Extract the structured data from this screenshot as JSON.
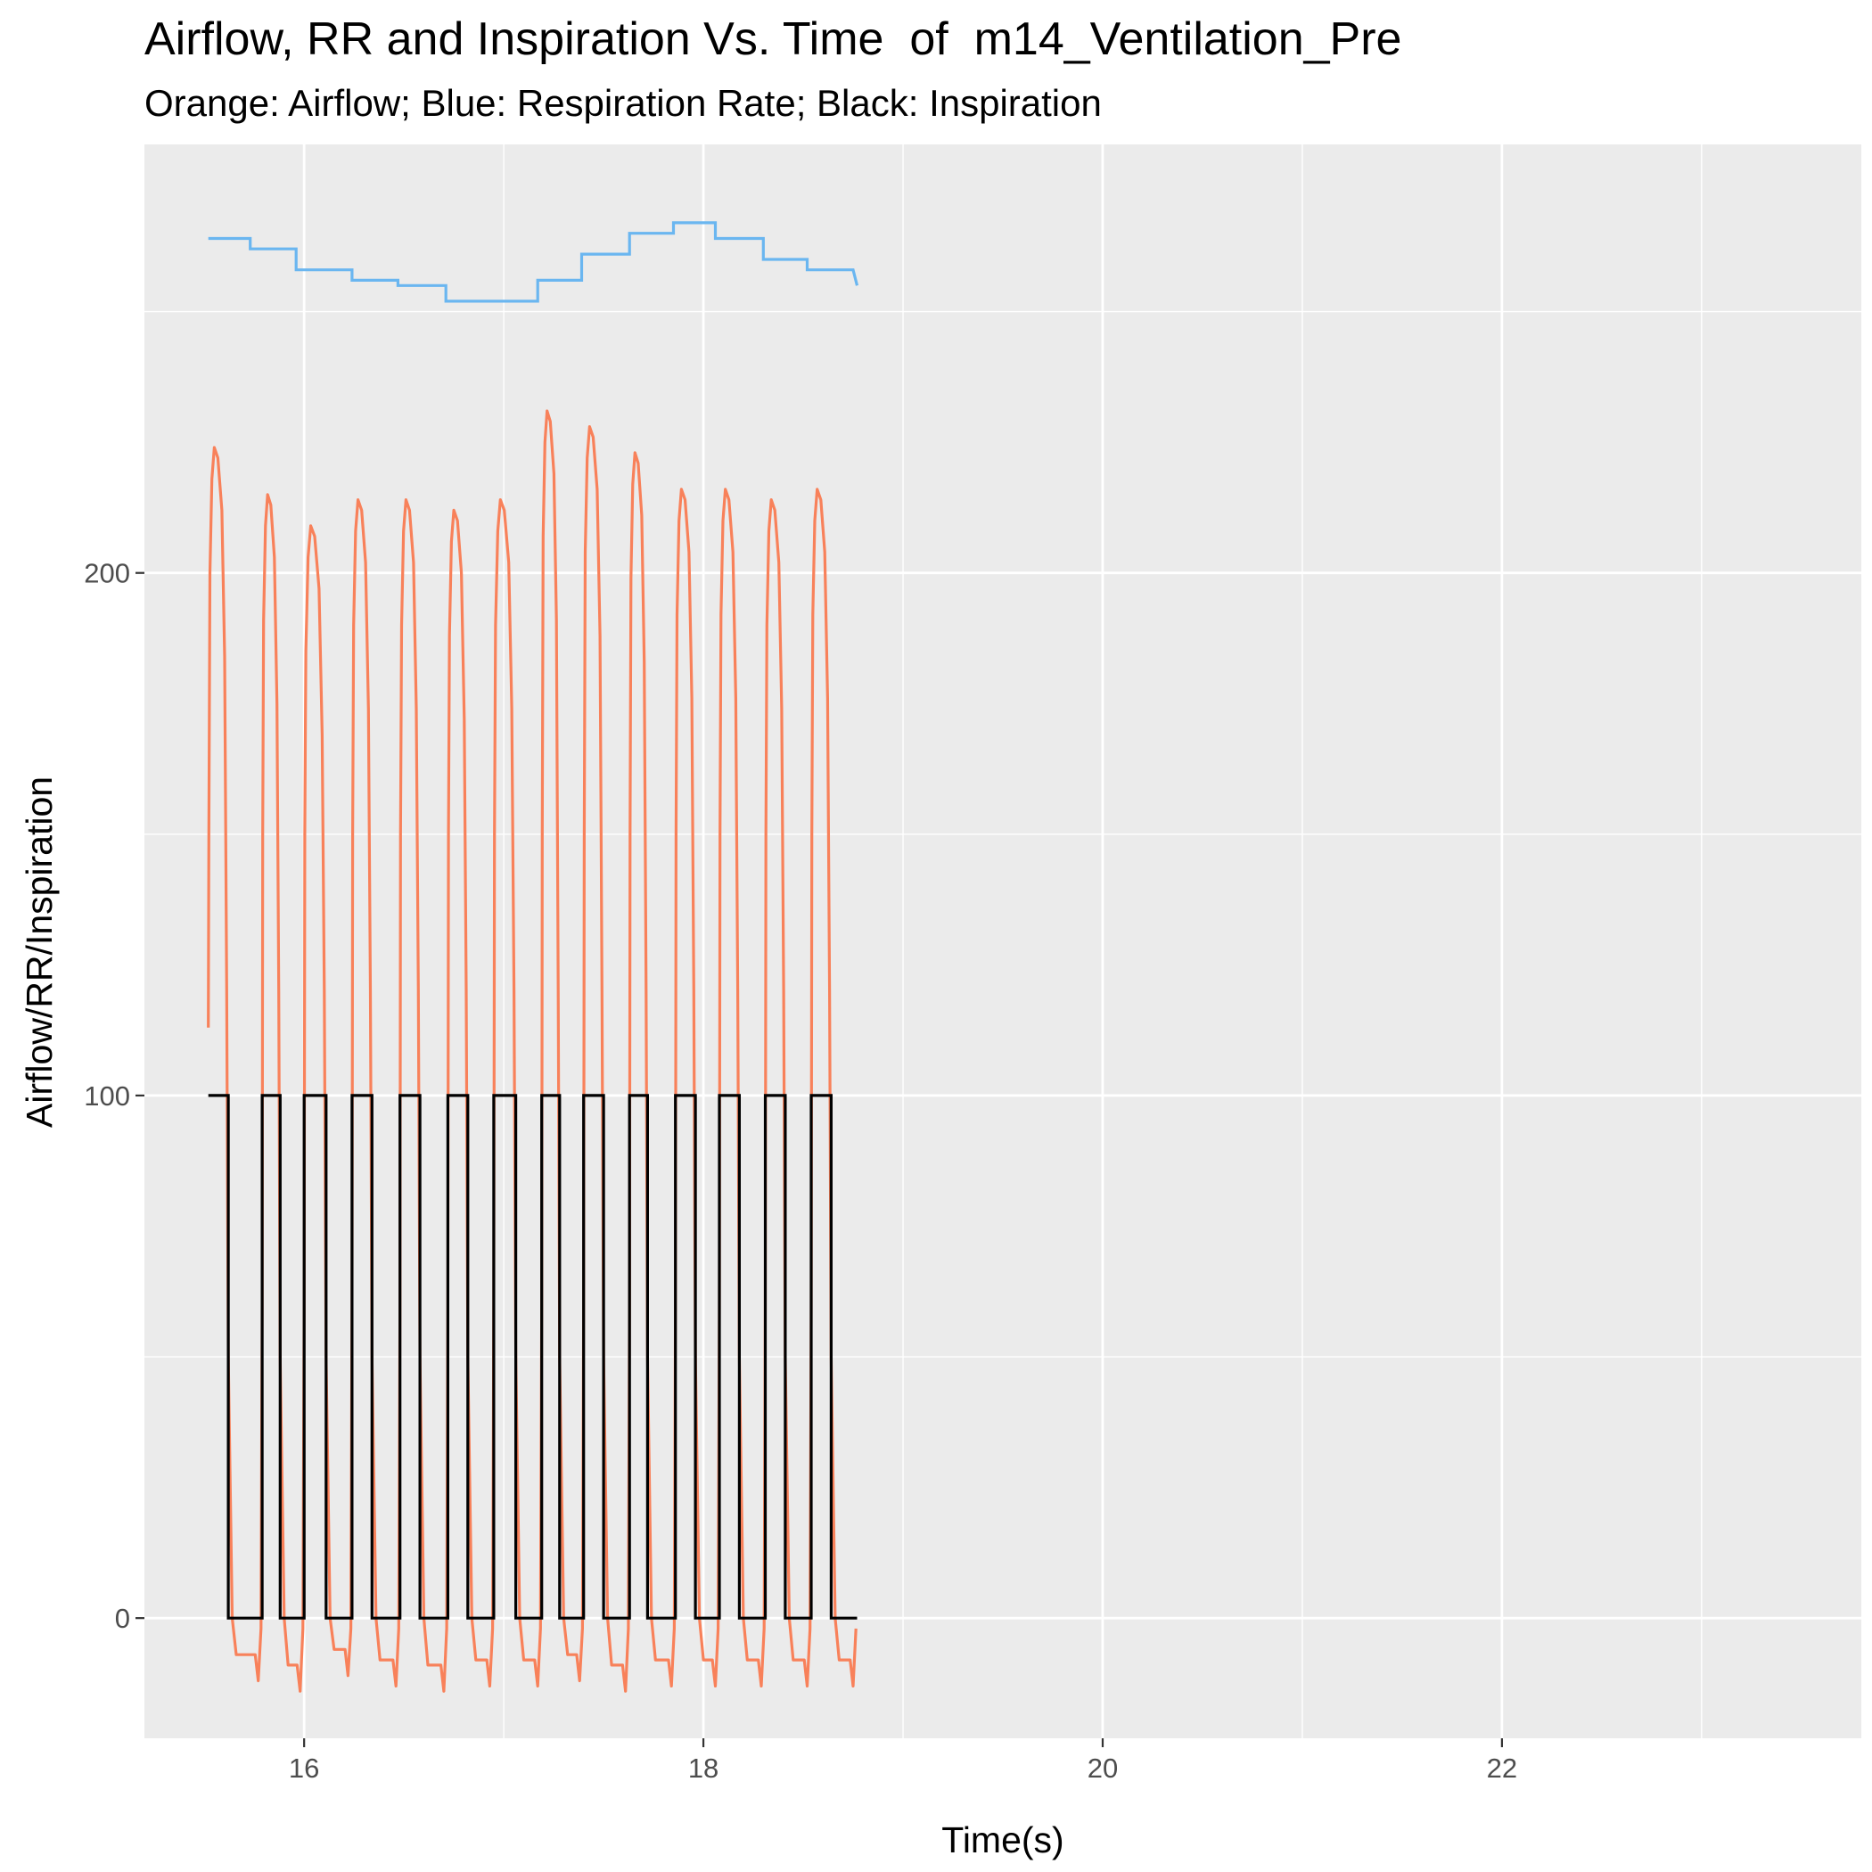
{
  "chart_data": {
    "type": "line",
    "title": "Airflow, RR and Inspiration Vs. Time  of  m14_Ventilation_Pre",
    "subtitle": "Orange: Airflow; Blue: Respiration Rate; Black: Inspiration",
    "xlabel": "Time(s)",
    "ylabel": "Airflow/RR/Inspiration",
    "xlim": [
      15.2,
      23.8
    ],
    "ylim": [
      -23,
      282
    ],
    "x_ticks": [
      16,
      18,
      20,
      22
    ],
    "x_tick_labels": [
      "16",
      "18",
      "20",
      "22"
    ],
    "y_ticks": [
      0,
      100,
      200
    ],
    "y_tick_labels": [
      "0",
      "100",
      "200"
    ],
    "grid": true,
    "legend": "none",
    "colors": {
      "panel": "#EBEBEB",
      "grid": "#FFFFFF",
      "airflow": "#F8815A",
      "respiration_rate": "#6AB6F0",
      "inspiration": "#000000"
    },
    "series": [
      {
        "key": "respiration_rate",
        "x": [
          15.52,
          15.73,
          15.73,
          15.96,
          15.96,
          16.24,
          16.24,
          16.47,
          16.47,
          16.71,
          16.71,
          17.17,
          17.17,
          17.39,
          17.39,
          17.63,
          17.63,
          17.85,
          17.85,
          18.06,
          18.06,
          18.3,
          18.3,
          18.52,
          18.52,
          18.75,
          18.77
        ],
        "y": [
          264,
          264,
          262,
          262,
          258,
          258,
          256,
          256,
          255,
          255,
          252,
          252,
          256,
          256,
          261,
          261,
          265,
          265,
          267,
          267,
          264,
          264,
          260,
          260,
          258,
          258,
          255
        ]
      },
      {
        "key": "airflow",
        "peaks": [
          {
            "x": 15.66,
            "y": 224
          },
          {
            "x": 15.86,
            "y": 215
          },
          {
            "x": 16.09,
            "y": 209
          },
          {
            "x": 16.29,
            "y": 214
          },
          {
            "x": 16.53,
            "y": 214
          },
          {
            "x": 16.77,
            "y": 212
          },
          {
            "x": 17.0,
            "y": 214
          },
          {
            "x": 17.22,
            "y": 231
          },
          {
            "x": 17.44,
            "y": 228
          },
          {
            "x": 17.66,
            "y": 223
          },
          {
            "x": 17.9,
            "y": 216
          },
          {
            "x": 18.12,
            "y": 216
          },
          {
            "x": 18.35,
            "y": 214
          },
          {
            "x": 18.57,
            "y": 216
          }
        ],
        "troughs": [
          -7,
          -9,
          -6,
          -8,
          -9,
          -8,
          -8,
          -7,
          -9,
          -8,
          -8,
          -8,
          -8,
          -8
        ]
      },
      {
        "key": "inspiration",
        "on": [
          [
            15.52,
            15.62
          ],
          [
            15.79,
            15.88
          ],
          [
            16.0,
            16.11
          ],
          [
            16.24,
            16.34
          ],
          [
            16.48,
            16.58
          ],
          [
            16.72,
            16.82
          ],
          [
            16.95,
            17.06
          ],
          [
            17.19,
            17.28
          ],
          [
            17.4,
            17.5
          ],
          [
            17.63,
            17.72
          ],
          [
            17.86,
            17.96
          ],
          [
            18.08,
            18.18
          ],
          [
            18.31,
            18.41
          ],
          [
            18.54,
            18.64
          ]
        ],
        "high": 100,
        "low": 0,
        "end_x": 18.77
      }
    ]
  }
}
